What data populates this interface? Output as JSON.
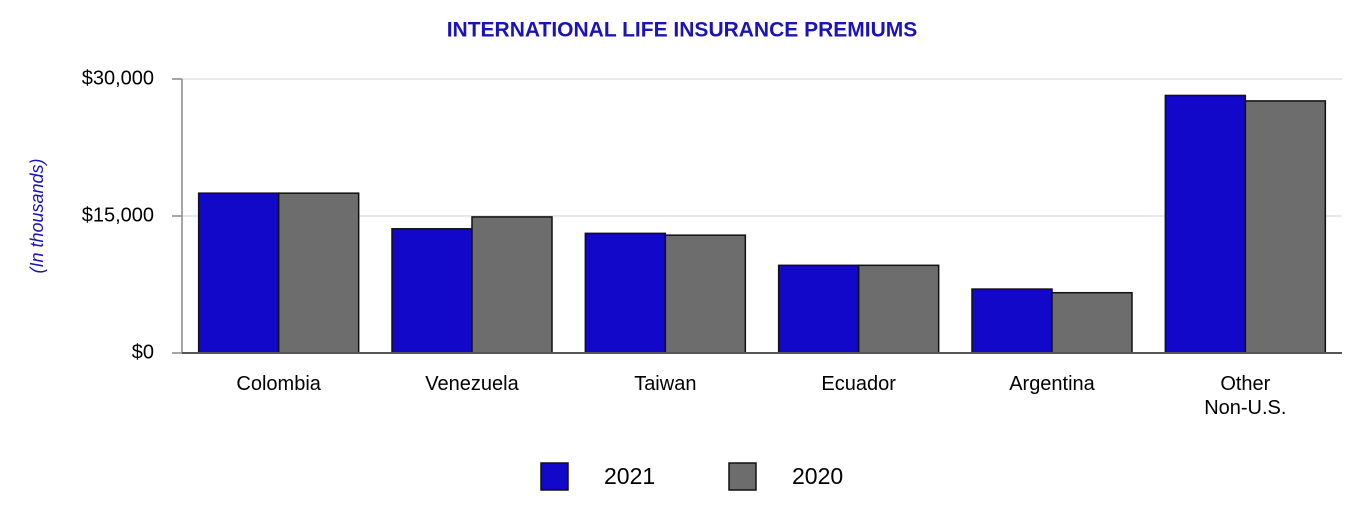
{
  "chart_data": {
    "type": "bar",
    "title": "INTERNATIONAL LIFE INSURANCE PREMIUMS",
    "y_label": "(In thousands)",
    "categories": [
      "Colombia",
      "Venezuela",
      "Taiwan",
      "Ecuador",
      "Argentina",
      "Other\nNon-U.S."
    ],
    "series": [
      {
        "name": "2021",
        "color": "#1108c9",
        "values": [
          17500,
          13600,
          13100,
          9600,
          7000,
          28200
        ]
      },
      {
        "name": "2020",
        "color": "#6d6d6d",
        "values": [
          17500,
          14900,
          12900,
          9600,
          6600,
          27600
        ]
      }
    ],
    "ylim": [
      0,
      30000
    ],
    "yticks": [
      {
        "value": 0,
        "label": "$0"
      },
      {
        "value": 15000,
        "label": "$15,000"
      },
      {
        "value": 30000,
        "label": "$30,000"
      }
    ],
    "grid": true,
    "legend": "bottom"
  }
}
